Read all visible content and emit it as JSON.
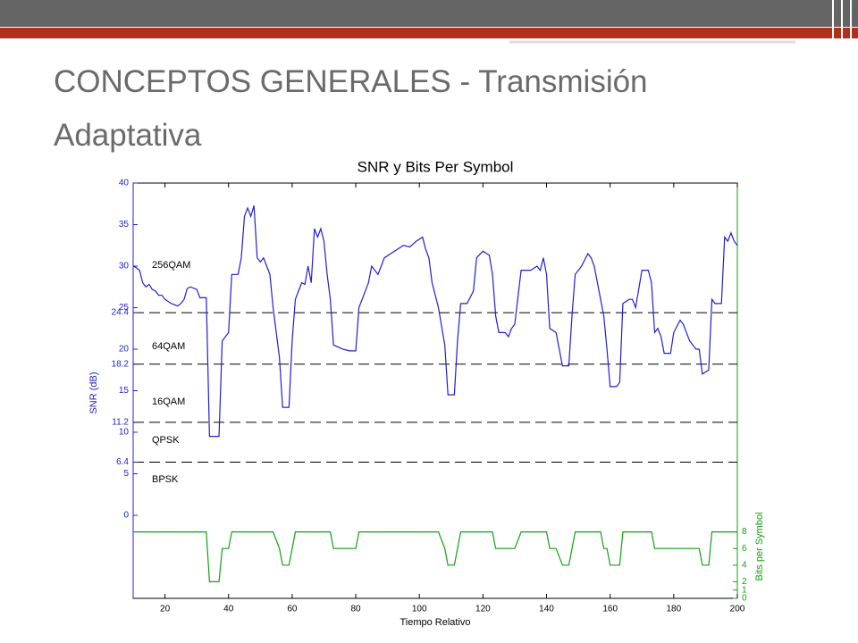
{
  "header": {
    "title": "CONCEPTOS GENERALES - Transmisión Adaptativa"
  },
  "chart_data": {
    "type": "line",
    "title": "SNR y Bits Per Symbol",
    "x_label": "Tiempo Relativo",
    "y_label": "SNR (dB)",
    "y2_label": "Bits per Symbol",
    "annotations": [
      "256QAM",
      "64QAM",
      "16QAM",
      "QPSK",
      "BPSK"
    ],
    "thresholds": [
      24.4,
      18.2,
      11.2,
      6.4
    ],
    "xlim": [
      10,
      200
    ],
    "xticks": [
      20,
      40,
      60,
      80,
      100,
      120,
      140,
      160,
      180,
      200
    ],
    "ylim": [
      -10,
      40
    ],
    "yticks": [
      0,
      5,
      6.4,
      10,
      11.2,
      15,
      18.2,
      20,
      24.4,
      25,
      30,
      35,
      40
    ],
    "y2lim": [
      0,
      50
    ],
    "y2ticks": [
      0,
      1,
      2,
      4,
      6,
      8
    ],
    "x": [
      10,
      11,
      12,
      13,
      14,
      15,
      16,
      17,
      18,
      19,
      20,
      22,
      24,
      25,
      26,
      27,
      28,
      30,
      31,
      33,
      34,
      37,
      38,
      40,
      41,
      43,
      44,
      45,
      46,
      47,
      48,
      49,
      50,
      51,
      52,
      53,
      54,
      56,
      57,
      59,
      60,
      61,
      62,
      63,
      64,
      65,
      66,
      67,
      68,
      69,
      70,
      71,
      72,
      73,
      76,
      78,
      80,
      81,
      82,
      84,
      85,
      87,
      89,
      91,
      93,
      95,
      97,
      99,
      101,
      102,
      103,
      104,
      106,
      108,
      109,
      111,
      112,
      113,
      115,
      117,
      118,
      120,
      122,
      123,
      124,
      125,
      127,
      128,
      129,
      130,
      132,
      135,
      137,
      138,
      139,
      140,
      141,
      143,
      145,
      147,
      148,
      149,
      151,
      153,
      154,
      155,
      157,
      158,
      159,
      160,
      162,
      163,
      164,
      166,
      167,
      168,
      170,
      172,
      173,
      174,
      175,
      176,
      177,
      179,
      180,
      182,
      183,
      185,
      187,
      188,
      189,
      191,
      192,
      193,
      195,
      196,
      197,
      198,
      199,
      200
    ],
    "series": [
      {
        "name": "SNR",
        "color": "#2020d0",
        "values": [
          30,
          29.8,
          29.5,
          28,
          27.5,
          27.8,
          27.2,
          27,
          26.5,
          26.5,
          26,
          25.5,
          25.2,
          25.5,
          26,
          27.3,
          27.5,
          27.2,
          26.2,
          26.2,
          9.5,
          9.5,
          21,
          22,
          29,
          29,
          31,
          36,
          37,
          36,
          37.3,
          31,
          30.5,
          31,
          30,
          29,
          25,
          19,
          13,
          13,
          21,
          26,
          27,
          28,
          27.8,
          30,
          28,
          34.5,
          33.5,
          34.5,
          33,
          29,
          26,
          20.5,
          20,
          19.8,
          19.8,
          25,
          26,
          28,
          30,
          29,
          31,
          31.5,
          32,
          32.5,
          32.3,
          33,
          33.5,
          32,
          31,
          28,
          25,
          20.5,
          14.5,
          14.5,
          21,
          25.5,
          25.5,
          27,
          31,
          31.8,
          31.3,
          29,
          24,
          22,
          22,
          21.5,
          22.5,
          23,
          29.5,
          29.5,
          30,
          29.5,
          31,
          29,
          22.5,
          22,
          18,
          18,
          24,
          29,
          30,
          31.5,
          31,
          30,
          26,
          24,
          20,
          15.5,
          15.5,
          16,
          25.5,
          26,
          26,
          25,
          29.5,
          29.5,
          28,
          22,
          22.5,
          21.5,
          19.5,
          19.5,
          22,
          23.5,
          23,
          21,
          20,
          20,
          17,
          17.5,
          26,
          25.5,
          25.5,
          33.5,
          33,
          34,
          33,
          32.5
        ]
      },
      {
        "name": "Bits per Symbol",
        "color": "#10a010",
        "axis": "y2",
        "values": [
          8,
          8,
          8,
          8,
          8,
          8,
          8,
          8,
          8,
          8,
          8,
          8,
          8,
          8,
          8,
          8,
          8,
          8,
          8,
          8,
          2,
          2,
          6,
          6,
          8,
          8,
          8,
          8,
          8,
          8,
          8,
          8,
          8,
          8,
          8,
          8,
          8,
          6,
          4,
          4,
          6,
          8,
          8,
          8,
          8,
          8,
          8,
          8,
          8,
          8,
          8,
          8,
          8,
          6,
          6,
          6,
          6,
          8,
          8,
          8,
          8,
          8,
          8,
          8,
          8,
          8,
          8,
          8,
          8,
          8,
          8,
          8,
          8,
          6,
          4,
          4,
          6,
          8,
          8,
          8,
          8,
          8,
          8,
          8,
          6,
          6,
          6,
          6,
          6,
          6,
          8,
          8,
          8,
          8,
          8,
          8,
          6,
          6,
          4,
          4,
          6,
          8,
          8,
          8,
          8,
          8,
          8,
          6,
          6,
          4,
          4,
          4,
          8,
          8,
          8,
          8,
          8,
          8,
          8,
          6,
          6,
          6,
          6,
          6,
          6,
          6,
          6,
          6,
          6,
          6,
          4,
          4,
          8,
          8,
          8,
          8,
          8,
          8,
          8,
          8
        ]
      }
    ]
  }
}
